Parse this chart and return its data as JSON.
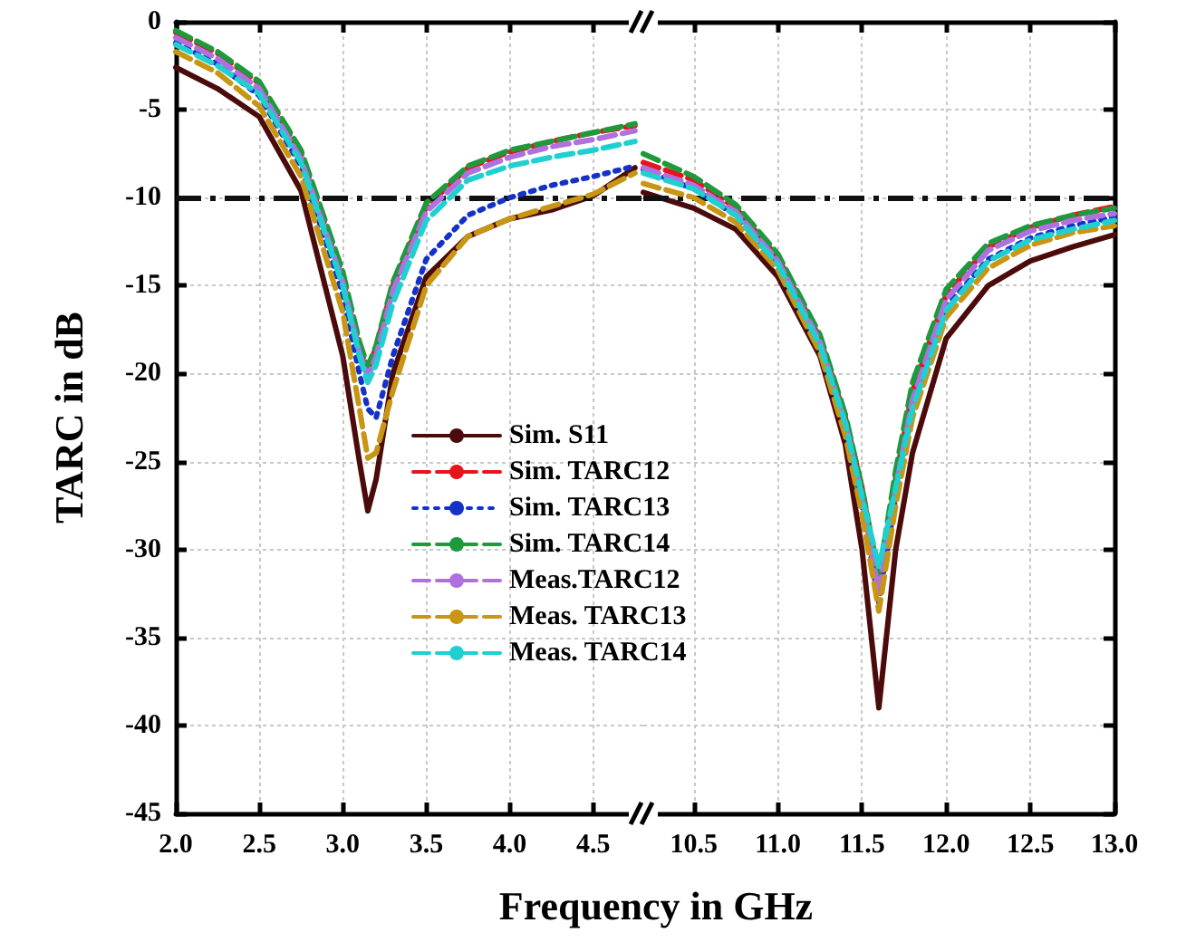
{
  "chart_data": [
    {
      "type": "line",
      "ylabel": "TARC in dB",
      "x": [
        2.0,
        2.25,
        2.5,
        2.75,
        3.0,
        3.1,
        3.15,
        3.2,
        3.3,
        3.5,
        3.75,
        4.0,
        4.25,
        4.5,
        4.75
      ],
      "xlim": [
        2.0,
        4.8
      ],
      "xticks": [
        {
          "value": 2.0,
          "label": "2.0"
        },
        {
          "value": 2.5,
          "label": "2.5"
        },
        {
          "value": 3.0,
          "label": "3.0"
        },
        {
          "value": 3.5,
          "label": "3.5"
        },
        {
          "value": 4.0,
          "label": "4.0"
        },
        {
          "value": 4.5,
          "label": "4.5"
        }
      ],
      "ylim": [
        -45,
        0
      ],
      "yticks": [
        0,
        -5,
        -10,
        -15,
        -20,
        -25,
        -30,
        -35,
        -40,
        -45
      ],
      "grid": true,
      "legend": "bottom",
      "marker": "none",
      "ref_lines": [
        {
          "axis": "y",
          "value": -10,
          "color": "#111111"
        }
      ],
      "series": [
        {
          "name": "Sim. S11",
          "color": "#4b0b0b",
          "line_style": "solid",
          "values": [
            -2.6,
            -3.8,
            -5.4,
            -9.6,
            -19,
            -25,
            -27.8,
            -26,
            -20,
            -14.5,
            -12.2,
            -11.2,
            -10.7,
            -9.9,
            -8.3
          ]
        },
        {
          "name": "Sim. TARC12",
          "color": "#e8141c",
          "line_style": "dashed",
          "values": [
            -0.6,
            -1.8,
            -3.5,
            -7.5,
            -14.5,
            -18.5,
            -19.8,
            -18.5,
            -15,
            -10.5,
            -8.3,
            -7.4,
            -6.8,
            -6.3,
            -5.9
          ]
        },
        {
          "name": "Sim. TARC13",
          "color": "#1432c8",
          "line_style": "dotted",
          "values": [
            -1.2,
            -2.4,
            -4.2,
            -8.2,
            -15.5,
            -20,
            -22,
            -22.5,
            -19,
            -13.5,
            -11,
            -10,
            -9.3,
            -8.8,
            -8.2
          ]
        },
        {
          "name": "Sim. TARC14",
          "color": "#1e9a3c",
          "line_style": "dashed",
          "values": [
            -0.5,
            -1.7,
            -3.4,
            -7.3,
            -14.2,
            -18.2,
            -19.6,
            -18.4,
            -14.8,
            -10.3,
            -8.2,
            -7.3,
            -6.8,
            -6.3,
            -5.8
          ]
        },
        {
          "name": "Meas.TARC12",
          "color": "#b070e0",
          "line_style": "dashed",
          "values": [
            -0.9,
            -2.1,
            -3.8,
            -7.8,
            -14.8,
            -18.8,
            -20.2,
            -19,
            -15.3,
            -10.8,
            -8.6,
            -7.7,
            -7.1,
            -6.7,
            -6.2
          ]
        },
        {
          "name": "Meas. TARC13",
          "color": "#c89614",
          "line_style": "dashed",
          "values": [
            -1.7,
            -2.9,
            -4.8,
            -8.8,
            -16.5,
            -22,
            -24.8,
            -24.5,
            -21,
            -15,
            -12.2,
            -11.2,
            -10.5,
            -9.8,
            -8.6
          ]
        },
        {
          "name": "Meas. TARC14",
          "color": "#20d0d0",
          "line_style": "dashed",
          "values": [
            -1.3,
            -2.5,
            -4.1,
            -8,
            -15,
            -19,
            -20.5,
            -19.5,
            -16,
            -11.3,
            -9,
            -8.2,
            -7.7,
            -7.3,
            -6.8
          ]
        }
      ]
    },
    {
      "type": "line",
      "xlabel": "Frequency in GHz",
      "x": [
        10.2,
        10.5,
        10.75,
        11.0,
        11.25,
        11.4,
        11.5,
        11.6,
        11.7,
        11.8,
        12.0,
        12.25,
        12.5,
        12.75,
        13.0
      ],
      "xlim": [
        10.2,
        13.0
      ],
      "xticks": [
        {
          "value": 10.5,
          "label": "10.5"
        },
        {
          "value": 11.0,
          "label": "11.0"
        },
        {
          "value": 11.5,
          "label": "11.5"
        },
        {
          "value": 12.0,
          "label": "12.0"
        },
        {
          "value": 12.5,
          "label": "12.5"
        },
        {
          "value": 13.0,
          "label": "13.0"
        }
      ],
      "ylim": [
        -45,
        0
      ],
      "yticks": [
        0,
        -5,
        -10,
        -15,
        -20,
        -25,
        -30,
        -35,
        -40,
        -45
      ],
      "grid": true,
      "marker": "none",
      "tick_labels": "x",
      "ref_lines": [
        {
          "axis": "y",
          "value": -10,
          "color": "#111111"
        }
      ],
      "series": [
        {
          "color": "#4b0b0b",
          "line_style": "solid",
          "values": [
            -9.7,
            -10.6,
            -11.8,
            -14.5,
            -19,
            -24,
            -30,
            -39,
            -30,
            -24.5,
            -18,
            -15,
            -13.6,
            -12.8,
            -12.1
          ]
        },
        {
          "color": "#e8141c",
          "line_style": "dashed",
          "values": [
            -8,
            -9,
            -10.6,
            -13.4,
            -18,
            -22.5,
            -26.5,
            -32,
            -26,
            -21,
            -15.5,
            -12.8,
            -11.7,
            -11,
            -10.5
          ]
        },
        {
          "color": "#1432c8",
          "line_style": "dotted",
          "values": [
            -8.4,
            -9.5,
            -11,
            -13.8,
            -18.5,
            -23,
            -27.5,
            -33,
            -27,
            -22,
            -16.2,
            -13.5,
            -12.3,
            -11.6,
            -11.1
          ]
        },
        {
          "color": "#1e9a3c",
          "line_style": "dashed",
          "values": [
            -7.5,
            -8.8,
            -10.4,
            -13.2,
            -17.8,
            -22.3,
            -26.5,
            -31.5,
            -25.5,
            -20.5,
            -15.2,
            -12.6,
            -11.6,
            -11,
            -10.6
          ]
        },
        {
          "color": "#b070e0",
          "line_style": "dashed",
          "values": [
            -8.3,
            -9.3,
            -10.8,
            -13.6,
            -18.2,
            -22.8,
            -27,
            -32.5,
            -26.5,
            -21.5,
            -15.8,
            -13,
            -11.9,
            -11.3,
            -10.9
          ]
        },
        {
          "color": "#c89614",
          "line_style": "dashed",
          "values": [
            -9.2,
            -10,
            -11.4,
            -14.1,
            -18.8,
            -23.5,
            -28,
            -33.5,
            -27.5,
            -22.5,
            -16.8,
            -14,
            -12.7,
            -12,
            -11.6
          ]
        },
        {
          "color": "#20d0d0",
          "line_style": "dashed",
          "values": [
            -8.6,
            -9.5,
            -11,
            -13.8,
            -18.4,
            -22.8,
            -27,
            -31,
            -26.5,
            -22,
            -16.4,
            -13.6,
            -12.4,
            -11.8,
            -11.3
          ]
        }
      ]
    }
  ]
}
